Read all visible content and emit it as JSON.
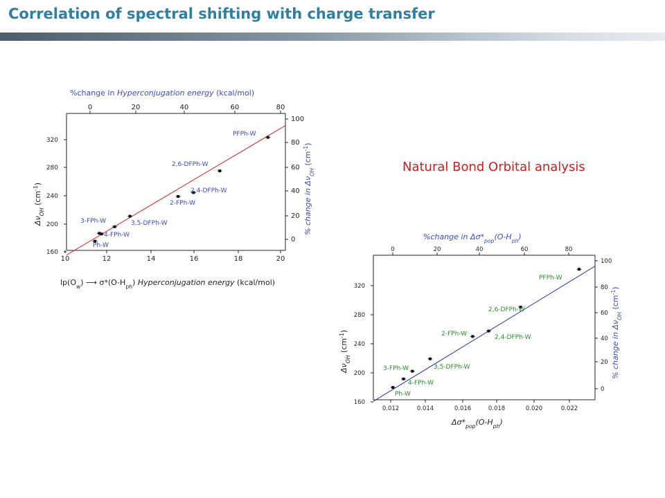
{
  "slide": {
    "title": "Correlation of spectral shifting with charge transfer",
    "nbo_heading": "Natural Bond Orbital analysis"
  },
  "colors": {
    "title": "#2e7fa3",
    "blue_label": "#3a49c4",
    "green_label": "#2e8b2e",
    "red_fit": "#d62222",
    "blue_fit": "#2233bb",
    "nbo_heading": "#d61a1a"
  },
  "chart_data": [
    {
      "type": "scatter",
      "fit_line": true,
      "fit_color": "red",
      "title": "",
      "xlabel": "lp(O w) → σ*(O-H ph) Hyperconjugation energy (kcal/mol)",
      "ylabel": "Δν OH (cm⁻¹)",
      "top_axis_label": "%change in Hyperconjugation energy (kcal/mol)",
      "right_axis_label": "% change in Δν OH (cm⁻¹)",
      "xlim": [
        10,
        20
      ],
      "ylim": [
        160,
        360
      ],
      "xticks": [
        "10",
        "12",
        "14",
        "16",
        "18",
        "20"
      ],
      "yticks": [
        "160",
        "200",
        "240",
        "280",
        "320"
      ],
      "top_ticks": [
        "0",
        "20",
        "40",
        "60",
        "80"
      ],
      "right_ticks": [
        "0",
        "20",
        "40",
        "60",
        "80",
        "100"
      ],
      "points": [
        {
          "label": "Ph-W",
          "x": 11.3,
          "y": 174
        },
        {
          "label": "4-FPh-W",
          "x": 11.6,
          "y": 185
        },
        {
          "label": "3-FPh-W",
          "x": 11.5,
          "y": 186
        },
        {
          "label": "3,5-DFPh-W",
          "x": 12.2,
          "y": 196
        },
        {
          "label": "",
          "x": 12.9,
          "y": 212
        },
        {
          "label": "2-FPh-W",
          "x": 15.1,
          "y": 242
        },
        {
          "label": "2,4-DFPh-W",
          "x": 15.8,
          "y": 248
        },
        {
          "label": "2,6-DFPh-W",
          "x": 17.0,
          "y": 281
        },
        {
          "label": "PFPh-W",
          "x": 19.2,
          "y": 332
        }
      ]
    },
    {
      "type": "scatter",
      "fit_line": true,
      "fit_color": "blue",
      "title": "",
      "xlabel": "Δσ* pop(O-H ph)",
      "ylabel": "Δν OH (cm⁻¹)",
      "top_axis_label": "%change in Δσ* pop(O-H ph)",
      "right_axis_label": "% change in Δν OH (cm⁻¹)",
      "xlim": [
        0.011,
        0.0235
      ],
      "ylim": [
        160,
        340
      ],
      "xticks": [
        "0.012",
        "0.014",
        "0.016",
        "0.018",
        "0.020",
        "0.022"
      ],
      "yticks": [
        "160",
        "200",
        "240",
        "280",
        "320"
      ],
      "top_ticks": [
        "0",
        "20",
        "40",
        "60",
        "80"
      ],
      "right_ticks": [
        "0",
        "20",
        "40",
        "60",
        "80",
        "100"
      ],
      "points": [
        {
          "label": "Ph-W",
          "x": 0.0121,
          "y": 176
        },
        {
          "label": "4-FPh-W",
          "x": 0.0127,
          "y": 187
        },
        {
          "label": "3-FPh-W",
          "x": 0.0132,
          "y": 197
        },
        {
          "label": "3,5-DFPh-W",
          "x": 0.0142,
          "y": 213
        },
        {
          "label": "2-FPh-W",
          "x": 0.0166,
          "y": 242
        },
        {
          "label": "2,4-DFPh-W",
          "x": 0.0175,
          "y": 249
        },
        {
          "label": "2,6-DFPh-W",
          "x": 0.0193,
          "y": 280
        },
        {
          "label": "PFPh-W",
          "x": 0.0226,
          "y": 329
        }
      ]
    }
  ]
}
